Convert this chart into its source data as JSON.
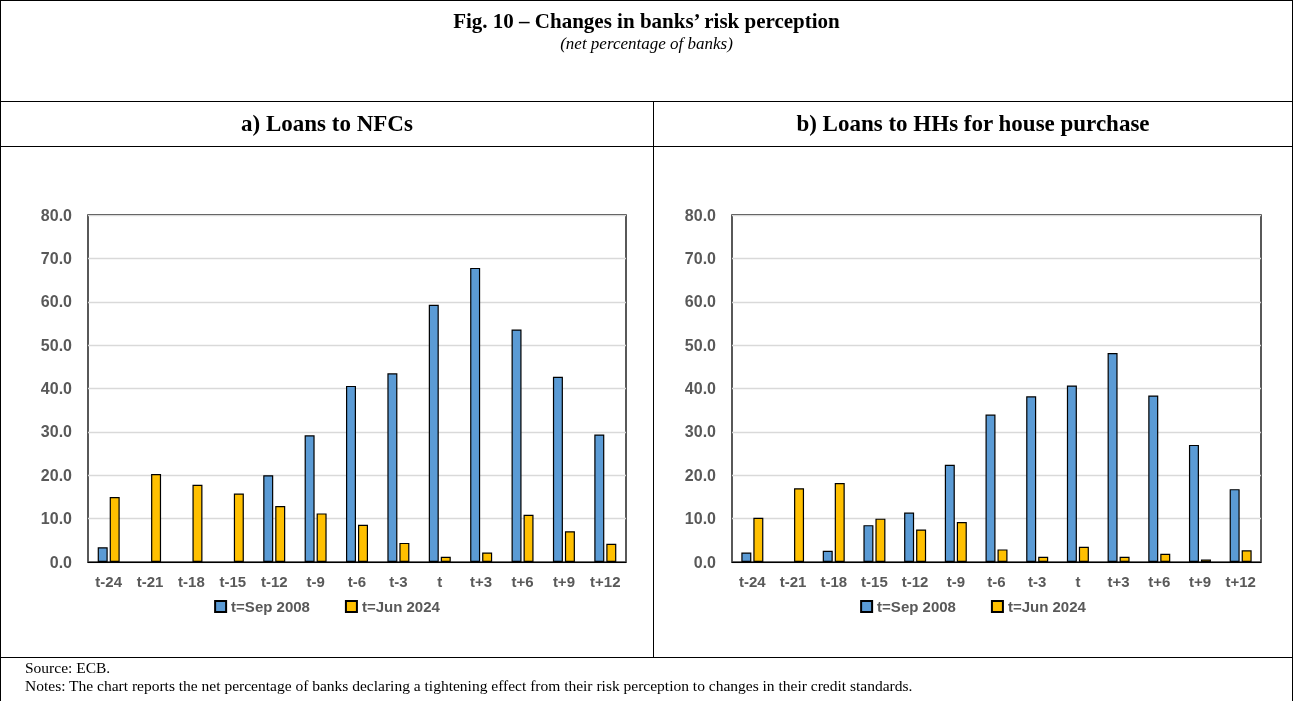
{
  "chart_data": [
    {
      "type": "bar",
      "title": "a)  Loans to NFCs",
      "annotations": [
        "Fig. 10 – Changes in banks’ risk perception",
        "(net percentage of banks)",
        "Source: ECB.",
        "Notes: The chart reports the net percentage of banks declaring a tightening effect from their risk perception to changes in their credit standards."
      ],
      "categories": [
        "t-24",
        "t-21",
        "t-18",
        "t-15",
        "t-12",
        "t-9",
        "t-6",
        "t-3",
        "t",
        "t+3",
        "t+6",
        "t+9",
        "t+12"
      ],
      "series": [
        {
          "name": "t=Sep 2008",
          "color": "#5b9bd5",
          "values": [
            3.4,
            null,
            null,
            null,
            20.0,
            29.2,
            40.6,
            43.5,
            59.3,
            67.8,
            53.6,
            42.7,
            29.4
          ]
        },
        {
          "name": "t=Jun 2024",
          "color": "#ffc000",
          "values": [
            15.0,
            20.3,
            17.8,
            15.8,
            12.9,
            11.2,
            8.6,
            4.4,
            1.2,
            2.2,
            10.9,
            7.1,
            4.2
          ]
        }
      ],
      "ylim": [
        0,
        80
      ],
      "yticks": [
        {
          "value": 0,
          "label": "0.0"
        },
        {
          "value": 10,
          "label": "10.0"
        },
        {
          "value": 20,
          "label": "20.0"
        },
        {
          "value": 30,
          "label": "30.0"
        },
        {
          "value": 40,
          "label": "40.0"
        },
        {
          "value": 50,
          "label": "50.0"
        },
        {
          "value": 60,
          "label": "60.0"
        },
        {
          "value": 70,
          "label": "70.0"
        },
        {
          "value": 80,
          "label": "80.0"
        }
      ],
      "grid": "y",
      "legend": "bottom"
    },
    {
      "type": "bar",
      "title": "b)  Loans to HHs for house purchase",
      "categories": [
        "t-24",
        "t-21",
        "t-18",
        "t-15",
        "t-12",
        "t-9",
        "t-6",
        "t-3",
        "t",
        "t+3",
        "t+6",
        "t+9",
        "t+12"
      ],
      "series": [
        {
          "name": "t=Sep 2008",
          "color": "#5b9bd5",
          "values": [
            2.2,
            null,
            2.6,
            8.5,
            11.4,
            22.4,
            34.0,
            38.2,
            40.7,
            48.2,
            38.4,
            27.0,
            16.8
          ]
        },
        {
          "name": "t=Jun 2024",
          "color": "#ffc000",
          "values": [
            10.2,
            17.0,
            18.2,
            10.0,
            7.5,
            9.2,
            2.9,
            1.2,
            3.5,
            1.2,
            1.9,
            0.6,
            2.7
          ]
        }
      ],
      "ylim": [
        0,
        80
      ],
      "yticks": [
        {
          "value": 0,
          "label": "0.0"
        },
        {
          "value": 10,
          "label": "10.0"
        },
        {
          "value": 20,
          "label": "20.0"
        },
        {
          "value": 30,
          "label": "30.0"
        },
        {
          "value": 40,
          "label": "40.0"
        },
        {
          "value": 50,
          "label": "50.0"
        },
        {
          "value": 60,
          "label": "60.0"
        },
        {
          "value": 70,
          "label": "70.0"
        },
        {
          "value": 80,
          "label": "80.0"
        }
      ],
      "grid": "y",
      "legend": "bottom"
    }
  ]
}
